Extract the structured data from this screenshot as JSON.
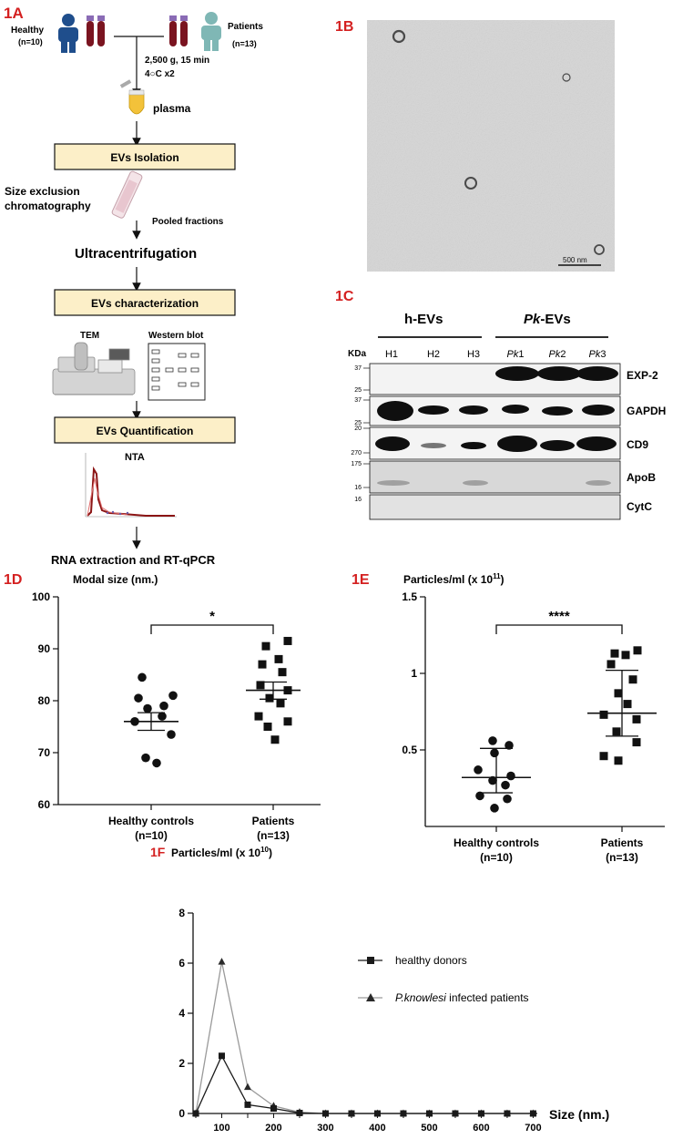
{
  "panel_labels": {
    "a": "1A",
    "b": "1B",
    "c": "1C",
    "d": "1D",
    "e": "1E",
    "f": "1F"
  },
  "flow": {
    "healthy": "Healthy",
    "healthy_n": "(n=10)",
    "patients": "Patients",
    "patients_n": "(n=13)",
    "centrifuge_1": "2,500 g, 15 min",
    "centrifuge_2": "4○C x2",
    "plasma": "plasma",
    "isolation": "EVs Isolation",
    "sec_1": "Size exclusion",
    "sec_2": "chromatography",
    "pooled": "Pooled fractions",
    "ultra": "Ultracentrifugation",
    "characterization": "EVs characterization",
    "tem": "TEM",
    "western": "Western blot",
    "quantification": "EVs Quantification",
    "nta": "NTA",
    "rna": "RNA extraction and RT-qPCR"
  },
  "tem_image": {
    "scale_bar": "500 nm"
  },
  "blot": {
    "group_h": "h-EVs",
    "group_pk_italic": "Pk",
    "group_pk_rest": "-EVs",
    "kda": "KDa",
    "lanes_h": [
      "H1",
      "H2",
      "H3"
    ],
    "lanes_pk_italic": [
      "Pk",
      "Pk",
      "Pk"
    ],
    "lanes_pk_num": [
      "1",
      "2",
      "3"
    ],
    "bands": [
      "EXP-2",
      "GAPDH",
      "CD9",
      "ApoB",
      "CytC"
    ],
    "markers": [
      "37",
      "25",
      "37",
      "25",
      "20",
      "270",
      "175",
      "16"
    ]
  },
  "charts": [
    {
      "id": "1D",
      "type": "scatter",
      "title": "Modal size (nm.)",
      "ylim": [
        60,
        100
      ],
      "yticks": [
        "60",
        "70",
        "80",
        "90",
        "100"
      ],
      "categories": [
        "Healthy controls",
        "Patients"
      ],
      "category_n": [
        "(n=10)",
        "(n=13)"
      ],
      "significance": "*",
      "series": [
        {
          "values": [
            84.5,
            81,
            80.5,
            79,
            78.5,
            77,
            76,
            73.5,
            69,
            68
          ]
        },
        {
          "values": [
            91.5,
            90.5,
            88,
            87,
            85.5,
            83,
            82,
            80.5,
            79.5,
            77,
            76,
            75,
            72.5
          ]
        }
      ],
      "means": [
        76,
        82
      ],
      "err_low": [
        74.3,
        80.3
      ],
      "err_high": [
        77.7,
        83.6
      ]
    },
    {
      "id": "1E",
      "type": "scatter",
      "title": "Particles/ml (x 10",
      "title_sup": "11",
      "title_close": ")",
      "ylim": [
        0,
        1.5
      ],
      "yticks": [
        "0.5",
        "1",
        "1.5"
      ],
      "categories": [
        "Healthy controls",
        "Patients"
      ],
      "category_n": [
        "(n=10)",
        "(n=13)"
      ],
      "significance": "****",
      "series": [
        {
          "values": [
            0.56,
            0.53,
            0.48,
            0.37,
            0.33,
            0.3,
            0.27,
            0.2,
            0.18,
            0.12
          ]
        },
        {
          "values": [
            1.15,
            1.13,
            1.12,
            1.06,
            0.96,
            0.87,
            0.8,
            0.73,
            0.7,
            0.62,
            0.55,
            0.46,
            0.43
          ]
        }
      ],
      "means": [
        0.32,
        0.74
      ],
      "err_low": [
        0.22,
        0.59
      ],
      "err_high": [
        0.51,
        1.02
      ]
    }
  ],
  "chart_data": {
    "type": "line",
    "title": "Particles/ml (x 10",
    "title_sup": "10",
    "title_close": ")",
    "xlabel": "Size (nm.)",
    "xlim": [
      50,
      700
    ],
    "ylim": [
      0,
      8
    ],
    "x": [
      50,
      100,
      150,
      200,
      250,
      300,
      350,
      400,
      450,
      500,
      550,
      600,
      650,
      700
    ],
    "xticks": [
      "100",
      "200",
      "300",
      "400",
      "500",
      "600",
      "700"
    ],
    "yticks": [
      "0",
      "2",
      "4",
      "6",
      "8"
    ],
    "legend_position": "right",
    "series": [
      {
        "name": "healthy donors",
        "marker": "square",
        "color": "#1a1a1a",
        "values": [
          0,
          2.3,
          0.35,
          0.2,
          0.02,
          0,
          0,
          0,
          0,
          0,
          0,
          0,
          0,
          0
        ]
      },
      {
        "name_italic": "P.knowlesi",
        "name_rest": " infected patients",
        "marker": "triangle",
        "color": "#9a9a9a",
        "values": [
          0,
          6.05,
          1.05,
          0.3,
          0.05,
          0,
          0,
          0,
          0,
          0,
          0,
          0,
          0,
          0
        ]
      }
    ]
  }
}
